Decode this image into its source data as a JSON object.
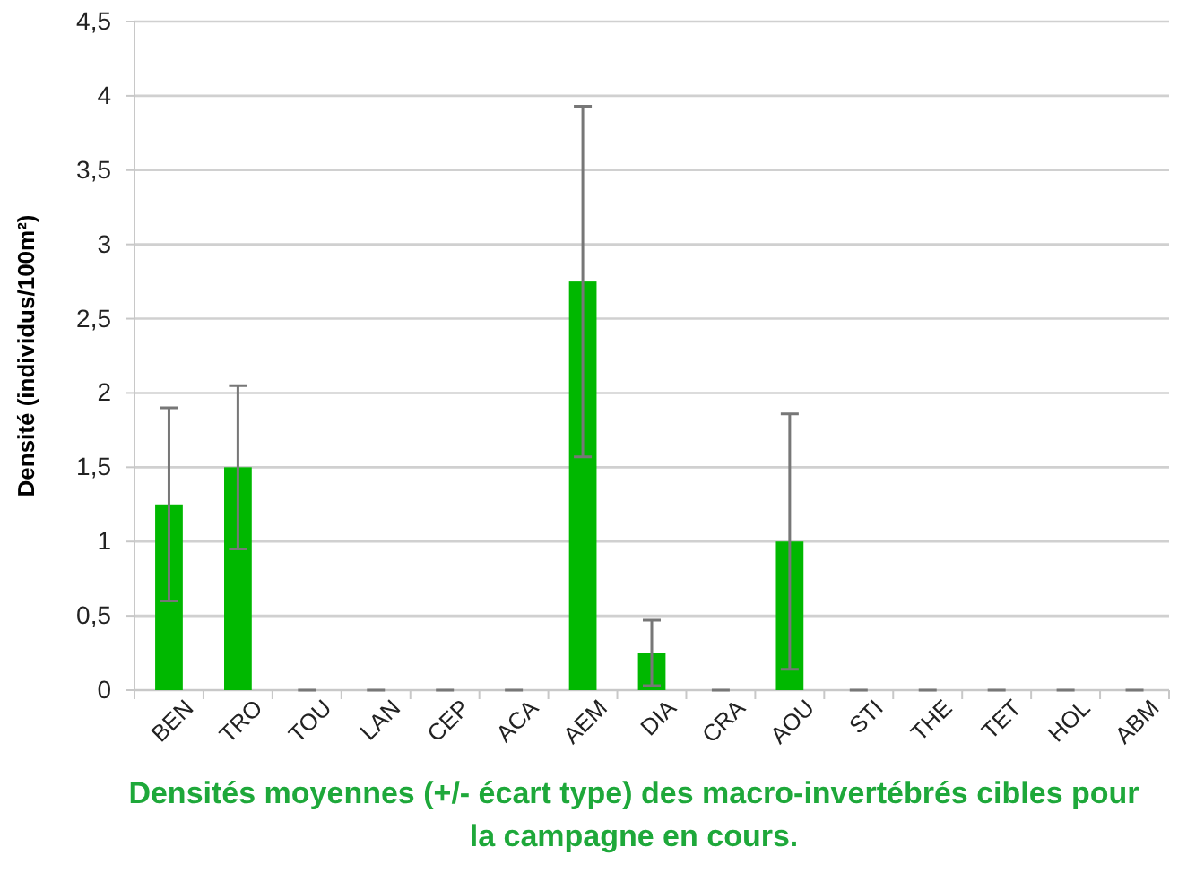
{
  "chart_data": {
    "type": "bar",
    "title": "Densités moyennes (+/- écart type) des macro-invertébrés cibles pour la campagne en cours.",
    "ylabel": "Densité (individus/100m²)",
    "categories": [
      "BEN",
      "TRO",
      "TOU",
      "LAN",
      "CEP",
      "ACA",
      "AEM",
      "DIA",
      "CRA",
      "AOU",
      "STI",
      "THE",
      "TET",
      "HOL",
      "ABM"
    ],
    "values": [
      1.25,
      1.5,
      0,
      0,
      0,
      0,
      2.75,
      0.25,
      0,
      1,
      0,
      0,
      0,
      0,
      0
    ],
    "errors": [
      0.65,
      0.55,
      0,
      0,
      0,
      0,
      1.18,
      0.22,
      0,
      0.86,
      0,
      0,
      0,
      0,
      0
    ],
    "color": "#00b800",
    "ylim": [
      0,
      4.5
    ],
    "yticks": [
      0,
      {
        "value": 0.5,
        "label": "0,5"
      },
      1,
      {
        "value": 1.5,
        "label": "1,5"
      },
      2,
      {
        "value": 2.5,
        "label": "2,5"
      },
      3,
      {
        "value": 3.5,
        "label": "3,5"
      },
      4,
      {
        "value": 4.5,
        "label": "4,5"
      }
    ],
    "grid": "y"
  }
}
